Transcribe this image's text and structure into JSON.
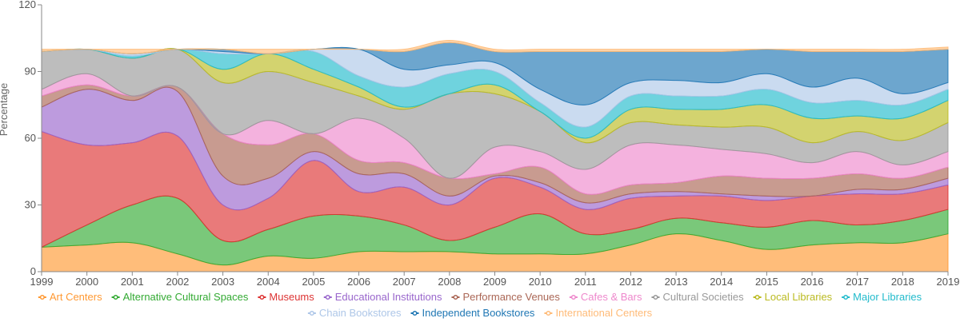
{
  "chart_data": {
    "type": "area",
    "stacked": true,
    "ylabel": "Percentage",
    "ylim": [
      0,
      120
    ],
    "yticks": [
      0,
      30,
      60,
      90,
      120
    ],
    "grid": false,
    "legend_position": "bottom",
    "x": [
      "1999",
      "2000",
      "2001",
      "2002",
      "2003",
      "2004",
      "2005",
      "2006",
      "2007",
      "2008",
      "2009",
      "2010",
      "2011",
      "2012",
      "2013",
      "2014",
      "2015",
      "2016",
      "2017",
      "2018",
      "2019"
    ],
    "series": [
      {
        "name": "Art Centers",
        "color": "#ff9933",
        "values": [
          11,
          12,
          13,
          8,
          3,
          7,
          6,
          9,
          9,
          9,
          8,
          8,
          8,
          12,
          17,
          14,
          10,
          12,
          13,
          13,
          17
        ]
      },
      {
        "name": "Alternative Cultural Spaces",
        "color": "#33aa33",
        "values": [
          0,
          9,
          17,
          25,
          11,
          12,
          19,
          16,
          12,
          5,
          12,
          18,
          9,
          7,
          7,
          8,
          10,
          11,
          8,
          10,
          11
        ]
      },
      {
        "name": "Museums",
        "color": "#dd3333",
        "values": [
          52,
          36,
          28,
          28,
          16,
          14,
          25,
          11,
          17,
          16,
          22,
          12,
          11,
          14,
          10,
          12,
          12,
          11,
          14,
          12,
          11
        ]
      },
      {
        "name": "Educational Institutions",
        "color": "#9966cc",
        "values": [
          11,
          25,
          19,
          20,
          13,
          9,
          4,
          8,
          6,
          4,
          1,
          2,
          3,
          2,
          2,
          1,
          2,
          0,
          2,
          2,
          3
        ]
      },
      {
        "name": "Performance Venues",
        "color": "#aa6655",
        "values": [
          5,
          2,
          2,
          2,
          19,
          15,
          8,
          6,
          5,
          8,
          1,
          7,
          4,
          4,
          4,
          8,
          8,
          8,
          7,
          5,
          5
        ]
      },
      {
        "name": "Cafes & Bars",
        "color": "#ee88cc",
        "values": [
          3,
          5,
          0,
          0,
          0,
          11,
          0,
          19,
          11,
          0,
          12,
          7,
          11,
          18,
          17,
          12,
          11,
          7,
          10,
          6,
          7
        ]
      },
      {
        "name": "Cultural Societies",
        "color": "#999999",
        "values": [
          17,
          11,
          17,
          17,
          23,
          22,
          23,
          10,
          13,
          38,
          24,
          18,
          12,
          10,
          9,
          10,
          12,
          9,
          9,
          11,
          13
        ]
      },
      {
        "name": "Local Libraries",
        "color": "#bbbb22",
        "values": [
          0,
          0,
          0,
          0,
          6,
          8,
          6,
          4,
          1,
          0,
          4,
          0,
          2,
          6,
          7,
          8,
          10,
          11,
          7,
          10,
          10
        ]
      },
      {
        "name": "Major Libraries",
        "color": "#22bbcc",
        "values": [
          0,
          0,
          1,
          0,
          7,
          0,
          8,
          5,
          9,
          9,
          6,
          4,
          5,
          6,
          6,
          6,
          7,
          7,
          7,
          6,
          5
        ]
      },
      {
        "name": "Chain Bookstores",
        "color": "#aec7e8",
        "values": [
          0,
          0,
          1,
          0,
          1,
          0,
          1,
          12,
          8,
          4,
          4,
          6,
          10,
          6,
          7,
          6,
          7,
          7,
          10,
          5,
          3
        ]
      },
      {
        "name": "Independent Bookstores",
        "color": "#1f77b4",
        "values": [
          0,
          0,
          0,
          0,
          1,
          0,
          0,
          0,
          8,
          10,
          5,
          17,
          24,
          14,
          13,
          14,
          11,
          16,
          12,
          19,
          15
        ]
      },
      {
        "name": "International Centers",
        "color": "#ffbb78",
        "values": [
          1,
          0,
          2,
          0,
          0,
          2,
          0,
          0,
          1,
          1,
          1,
          1,
          1,
          1,
          1,
          1,
          0,
          1,
          1,
          1,
          1
        ]
      }
    ]
  }
}
